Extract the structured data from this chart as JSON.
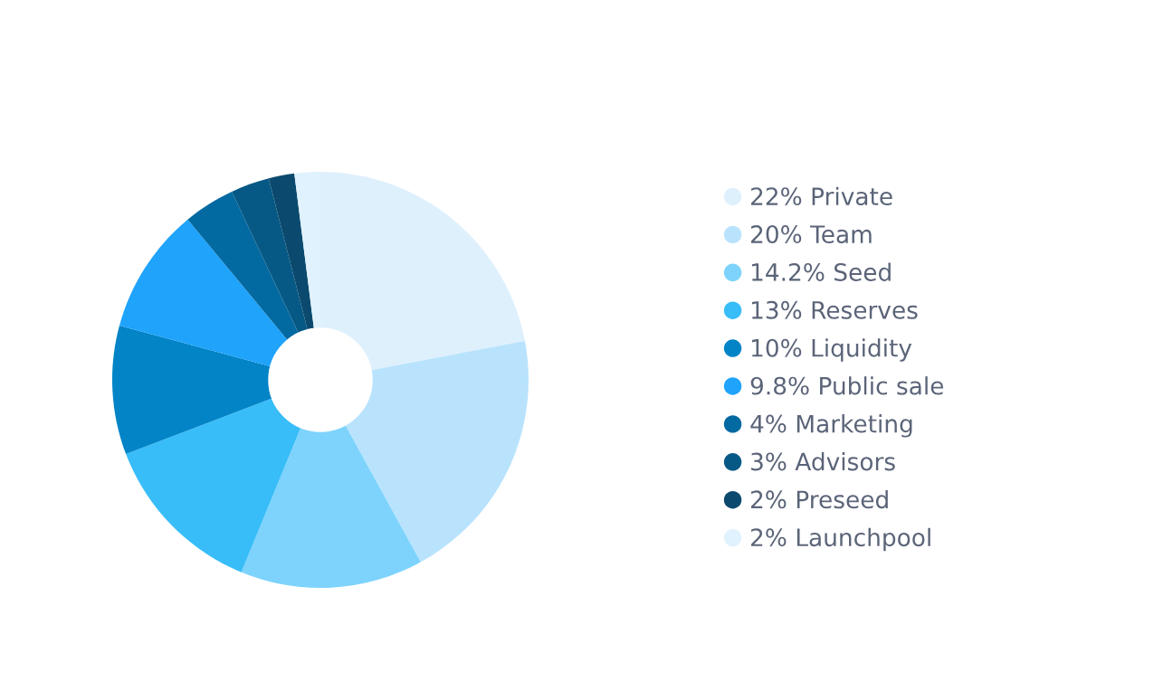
{
  "chart_data": {
    "type": "donut",
    "categories": [
      "Private",
      "Team",
      "Seed",
      "Reserves",
      "Liquidity",
      "Public sale",
      "Marketing",
      "Advisors",
      "Preseed",
      "Launchpool"
    ],
    "values": [
      22,
      20,
      14.2,
      13,
      10,
      9.8,
      4,
      3,
      2,
      2
    ],
    "value_labels": [
      "22%",
      "20%",
      "14.2%",
      "13%",
      "10%",
      "9.8%",
      "4%",
      "3%",
      "2%",
      "2%"
    ],
    "colors": [
      "#dff0fd",
      "#b9e3fd",
      "#7dd3fc",
      "#38bdf8",
      "#0284c7",
      "#1fa3fb",
      "#0369a1",
      "#075985",
      "#0b4a6e",
      "#e0f2fe"
    ],
    "legend": "right"
  }
}
